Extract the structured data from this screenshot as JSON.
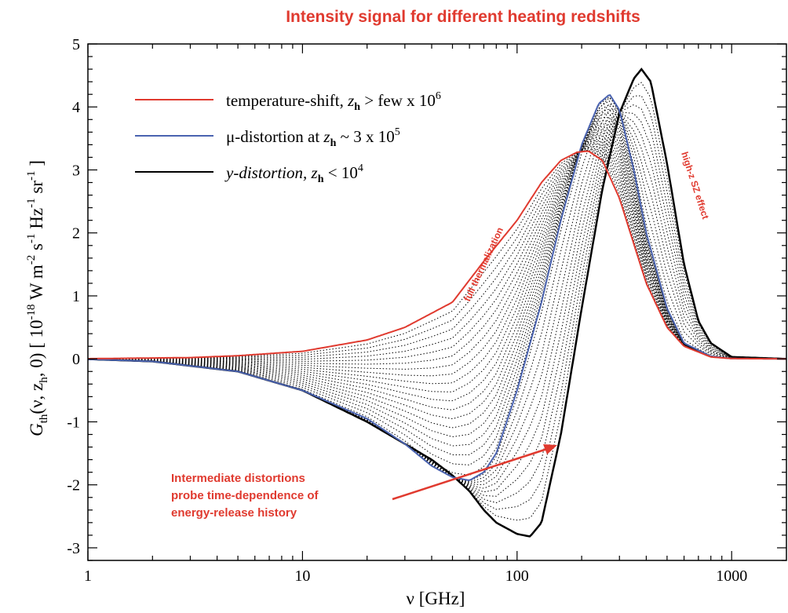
{
  "chart_data": {
    "type": "line",
    "title": "Intensity signal for different heating redshifts",
    "x_scale": "log",
    "xlim": [
      1,
      1800
    ],
    "ylim": [
      -3.2,
      5
    ],
    "x_ticks": [
      1,
      10,
      100,
      1000
    ],
    "x_tick_labels": [
      "1",
      "10",
      "100",
      "1000"
    ],
    "y_ticks": [
      -3,
      -2,
      -1,
      0,
      1,
      2,
      3,
      4,
      5
    ],
    "y_tick_labels": [
      "-3",
      "-2",
      "-1",
      "0",
      "1",
      "2",
      "3",
      "4",
      "5"
    ],
    "xlabel": "ν [GHz]",
    "ylabel": {
      "base": "G",
      "base_sub": "th",
      "args": "(ν, z",
      "args_sub": "h",
      "args_end": ", 0)  [ 10",
      "unit_e1": "-18",
      "unit_w": " W m",
      "unit_e2": "-2",
      "unit_s": " s",
      "unit_e3": "-1",
      "unit_hz": " Hz",
      "unit_e4": "-1",
      "unit_sr": " sr",
      "unit_e5": "-1",
      "unit_end": " ]"
    },
    "grid": false,
    "legend_placement": "top-left",
    "legend": [
      {
        "series": "temperature-shift",
        "color": "#e03a2f",
        "style": "solid",
        "pre": "temperature-shift, ",
        "z": "z",
        "zsub": "h",
        "post": " > few x 10",
        "sup": "6"
      },
      {
        "series": "mu-distortion",
        "color": "#4a63b0",
        "style": "solid",
        "pre": "μ-distortion at ",
        "z": "z",
        "zsub": "h",
        "post": " ~ 3 x 10",
        "sup": "5"
      },
      {
        "series": "y-distortion",
        "color": "#000000",
        "style": "solid",
        "pre": "y-distortion, ",
        "z": "z",
        "zsub": "h",
        "post": " < 10",
        "sup": "4"
      }
    ],
    "series": [
      {
        "name": "temperature-shift",
        "color": "#e03a2f",
        "style": "solid",
        "points": [
          [
            1,
            0.003
          ],
          [
            3,
            0.02
          ],
          [
            5,
            0.05
          ],
          [
            10,
            0.12
          ],
          [
            20,
            0.3
          ],
          [
            30,
            0.5
          ],
          [
            50,
            0.9
          ],
          [
            70,
            1.55
          ],
          [
            100,
            2.2
          ],
          [
            130,
            2.8
          ],
          [
            160,
            3.15
          ],
          [
            190,
            3.28
          ],
          [
            215,
            3.3
          ],
          [
            250,
            3.15
          ],
          [
            300,
            2.55
          ],
          [
            400,
            1.2
          ],
          [
            500,
            0.5
          ],
          [
            600,
            0.2
          ],
          [
            800,
            0.03
          ],
          [
            1000,
            0.005
          ],
          [
            1800,
            0
          ]
        ]
      },
      {
        "name": "mu-distortion",
        "color": "#4a63b0",
        "style": "solid",
        "points": [
          [
            1,
            -0.005
          ],
          [
            2,
            -0.04
          ],
          [
            5,
            -0.2
          ],
          [
            10,
            -0.5
          ],
          [
            20,
            -0.95
          ],
          [
            30,
            -1.35
          ],
          [
            40,
            -1.7
          ],
          [
            50,
            -1.88
          ],
          [
            60,
            -1.93
          ],
          [
            70,
            -1.8
          ],
          [
            80,
            -1.5
          ],
          [
            100,
            -0.5
          ],
          [
            130,
            0.9
          ],
          [
            160,
            2.2
          ],
          [
            200,
            3.4
          ],
          [
            240,
            4.05
          ],
          [
            270,
            4.2
          ],
          [
            300,
            3.95
          ],
          [
            350,
            3.0
          ],
          [
            400,
            2.0
          ],
          [
            500,
            0.8
          ],
          [
            600,
            0.25
          ],
          [
            800,
            0.04
          ],
          [
            1000,
            0.005
          ],
          [
            1800,
            0
          ]
        ]
      },
      {
        "name": "y-distortion",
        "color": "#000000",
        "style": "solid",
        "points": [
          [
            1,
            -0.005
          ],
          [
            2,
            -0.04
          ],
          [
            5,
            -0.2
          ],
          [
            10,
            -0.5
          ],
          [
            20,
            -1.0
          ],
          [
            30,
            -1.35
          ],
          [
            40,
            -1.6
          ],
          [
            50,
            -1.85
          ],
          [
            60,
            -2.1
          ],
          [
            70,
            -2.4
          ],
          [
            80,
            -2.6
          ],
          [
            100,
            -2.78
          ],
          [
            115,
            -2.82
          ],
          [
            130,
            -2.6
          ],
          [
            160,
            -1.2
          ],
          [
            200,
            0.8
          ],
          [
            250,
            2.7
          ],
          [
            300,
            3.9
          ],
          [
            350,
            4.45
          ],
          [
            380,
            4.6
          ],
          [
            420,
            4.4
          ],
          [
            500,
            3.1
          ],
          [
            600,
            1.5
          ],
          [
            700,
            0.6
          ],
          [
            800,
            0.25
          ],
          [
            1000,
            0.03
          ],
          [
            1800,
            0
          ]
        ]
      }
    ],
    "intermediate_series_count": 30,
    "annotations": [
      {
        "text": "full thermalization",
        "color": "#e03a2f"
      },
      {
        "text": "high-z SZ effect",
        "color": "#e03a2f"
      },
      {
        "lines": [
          "Intermediate distortions",
          "probe time-dependence of",
          "energy-release history"
        ],
        "color": "#e03a2f"
      }
    ]
  }
}
